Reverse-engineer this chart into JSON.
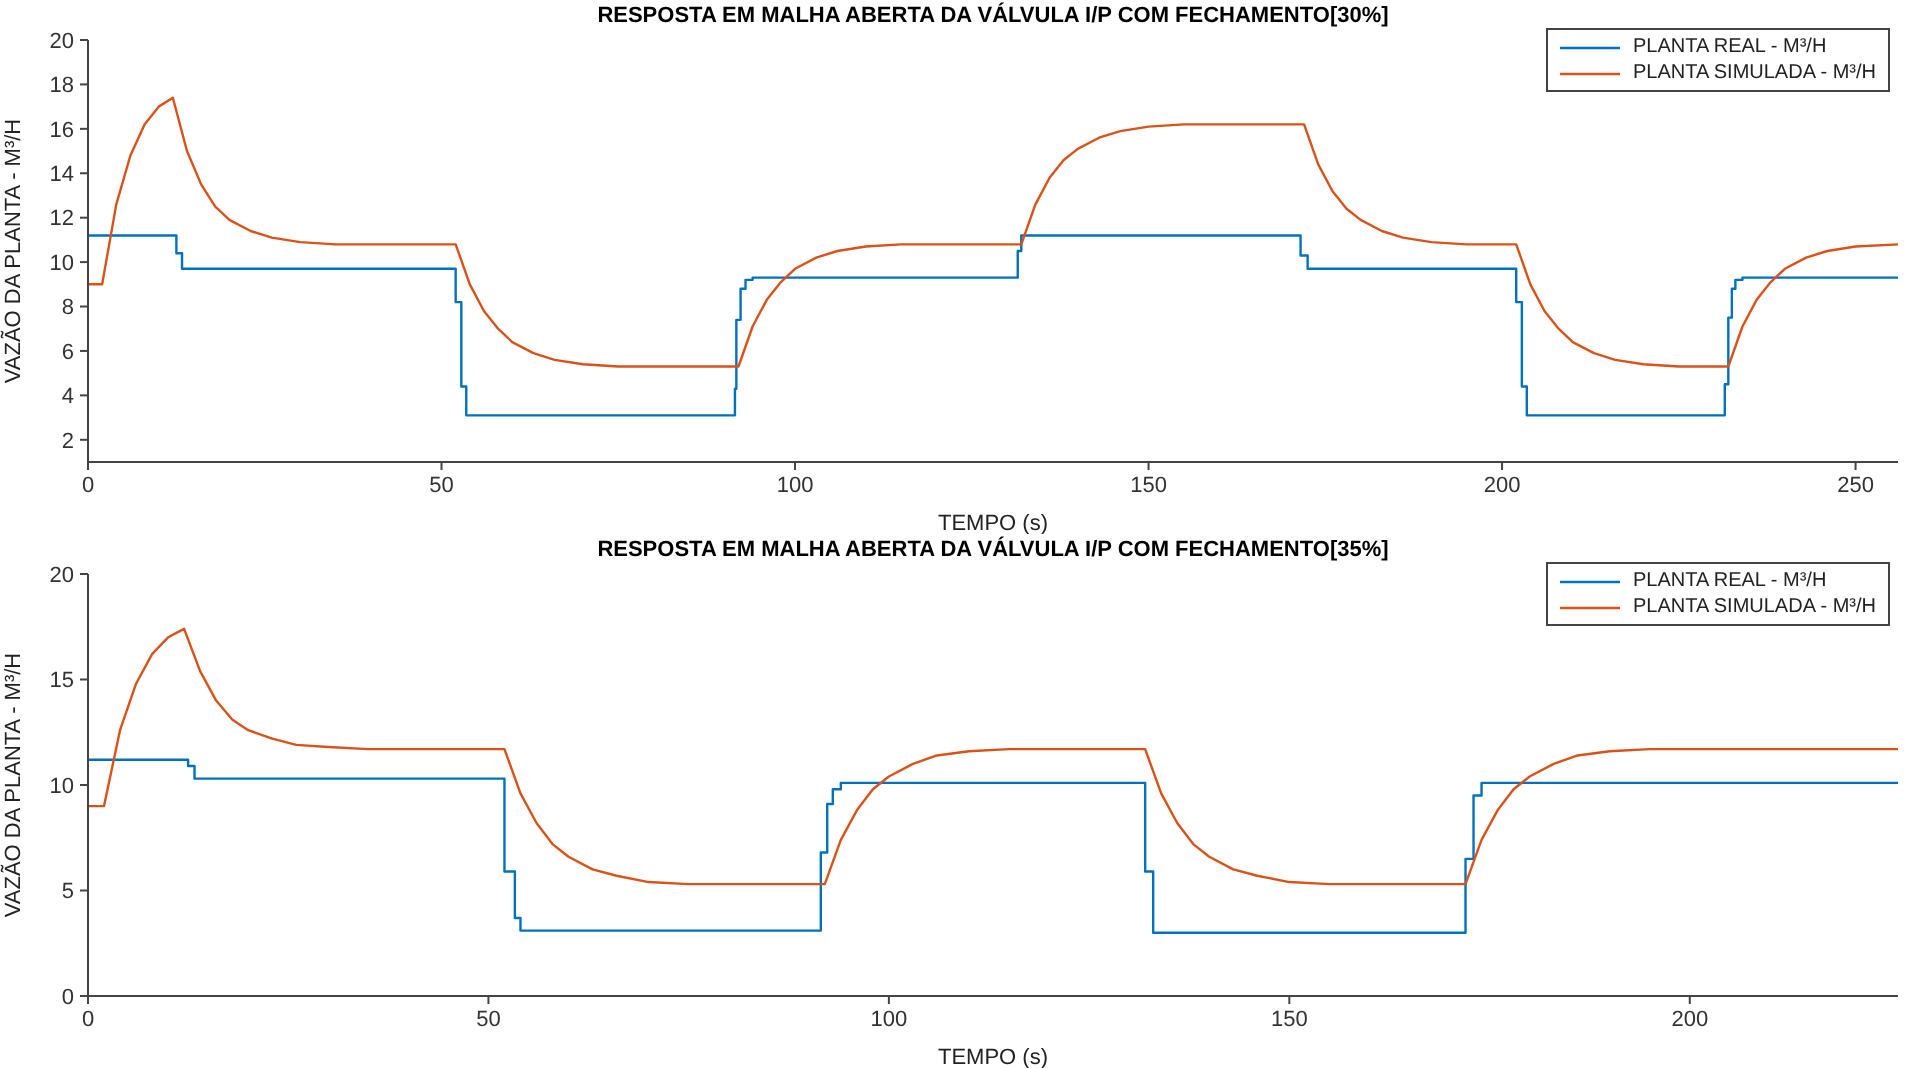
{
  "chart_data": [
    {
      "type": "line",
      "title": "RESPOSTA EM MALHA ABERTA DA VÁLVULA I/P COM FECHAMENTO[30%]",
      "xlabel": "TEMPO (s)",
      "ylabel": "VAZÃO DA PLANTA - M³/H",
      "xlim": [
        0,
        256
      ],
      "xticks": [
        0,
        50,
        100,
        150,
        200,
        250
      ],
      "ylim": [
        1,
        20
      ],
      "yticks": [
        2,
        4,
        6,
        8,
        10,
        12,
        14,
        16,
        18,
        20
      ],
      "grid": false,
      "legend": "top right",
      "marker": "none",
      "line_style": "solid",
      "series": [
        {
          "name": "PLANTA REAL - M³/H",
          "type": "step",
          "color": "#0072bd",
          "x": [
            0,
            12.5,
            13.3,
            52,
            52.8,
            53.5,
            91.5,
            91.7,
            92.3,
            93,
            94,
            131.5,
            132,
            171.5,
            172.5,
            202,
            202.8,
            203.5,
            231.5,
            232,
            232.5,
            233,
            234,
            256
          ],
          "values": [
            11.2,
            10.4,
            9.7,
            8.2,
            4.4,
            3.1,
            4.3,
            7.4,
            8.8,
            9.2,
            9.3,
            10.5,
            11.2,
            10.3,
            9.7,
            8.2,
            4.4,
            3.1,
            4.5,
            7.5,
            8.8,
            9.2,
            9.3,
            9.3
          ]
        },
        {
          "name": "PLANTA SIMULADA - M³/H",
          "type": "line",
          "color": "#d95319",
          "x": [
            0,
            2,
            4,
            6,
            8,
            10,
            12,
            14,
            16,
            18,
            20,
            23,
            26,
            30,
            35,
            52,
            54,
            56,
            58,
            60,
            63,
            66,
            70,
            75,
            92,
            94,
            96,
            98,
            100,
            103,
            106,
            110,
            115,
            132,
            134,
            136,
            138,
            140,
            143,
            146,
            150,
            155,
            172,
            174,
            176,
            178,
            180,
            183,
            186,
            190,
            195,
            202,
            204,
            206,
            208,
            210,
            213,
            216,
            220,
            225,
            232,
            234,
            236,
            238,
            240,
            243,
            246,
            250,
            256
          ],
          "values": [
            9,
            9,
            12.6,
            14.8,
            16.2,
            17.0,
            17.4,
            15.0,
            13.5,
            12.5,
            11.9,
            11.4,
            11.1,
            10.9,
            10.8,
            10.8,
            9.0,
            7.8,
            7.0,
            6.4,
            5.9,
            5.6,
            5.4,
            5.3,
            5.3,
            7.1,
            8.3,
            9.1,
            9.7,
            10.2,
            10.5,
            10.7,
            10.8,
            10.8,
            12.6,
            13.8,
            14.6,
            15.1,
            15.6,
            15.9,
            16.1,
            16.2,
            16.2,
            14.4,
            13.2,
            12.4,
            11.9,
            11.4,
            11.1,
            10.9,
            10.8,
            10.8,
            9.0,
            7.8,
            7.0,
            6.4,
            5.9,
            5.6,
            5.4,
            5.3,
            5.3,
            7.1,
            8.3,
            9.1,
            9.7,
            10.2,
            10.5,
            10.7,
            10.8
          ]
        }
      ]
    },
    {
      "type": "line",
      "title": "RESPOSTA EM MALHA ABERTA DA VÁLVULA I/P COM FECHAMENTO[35%]",
      "xlabel": "TEMPO (s)",
      "ylabel": "VAZÃO DA PLANTA - M³/H",
      "xlim": [
        0,
        226
      ],
      "xticks": [
        0,
        50,
        100,
        150,
        200
      ],
      "ylim": [
        0,
        20
      ],
      "yticks": [
        0,
        5,
        10,
        15,
        20
      ],
      "grid": false,
      "legend": "top right",
      "marker": "none",
      "line_style": "solid",
      "series": [
        {
          "name": "PLANTA REAL - M³/H",
          "type": "step",
          "color": "#0072bd",
          "x": [
            0,
            12.5,
            13.3,
            52,
            53.3,
            54,
            91.5,
            92.3,
            93,
            94,
            132,
            133,
            172,
            173,
            174,
            226
          ],
          "values": [
            11.2,
            10.9,
            10.3,
            5.9,
            3.7,
            3.1,
            6.8,
            9.1,
            9.8,
            10.1,
            5.9,
            3.0,
            6.5,
            9.5,
            10.1,
            10.1
          ]
        },
        {
          "name": "PLANTA SIMULADA - M³/H",
          "type": "line",
          "color": "#d95319",
          "x": [
            0,
            2,
            4,
            6,
            8,
            10,
            12,
            14,
            16,
            18,
            20,
            23,
            26,
            30,
            35,
            52,
            54,
            56,
            58,
            60,
            63,
            66,
            70,
            75,
            92,
            94,
            96,
            98,
            100,
            103,
            106,
            110,
            115,
            132,
            134,
            136,
            138,
            140,
            143,
            146,
            150,
            155,
            172,
            174,
            176,
            178,
            180,
            183,
            186,
            190,
            195,
            226
          ],
          "values": [
            9,
            9,
            12.6,
            14.8,
            16.2,
            17.0,
            17.4,
            15.4,
            14.0,
            13.1,
            12.6,
            12.2,
            11.9,
            11.8,
            11.7,
            11.7,
            9.6,
            8.2,
            7.2,
            6.6,
            6.0,
            5.7,
            5.4,
            5.3,
            5.3,
            7.4,
            8.8,
            9.8,
            10.4,
            11.0,
            11.4,
            11.6,
            11.7,
            11.7,
            9.6,
            8.2,
            7.2,
            6.6,
            6.0,
            5.7,
            5.4,
            5.3,
            5.3,
            7.4,
            8.8,
            9.8,
            10.4,
            11.0,
            11.4,
            11.6,
            11.7,
            11.7
          ]
        }
      ]
    }
  ]
}
